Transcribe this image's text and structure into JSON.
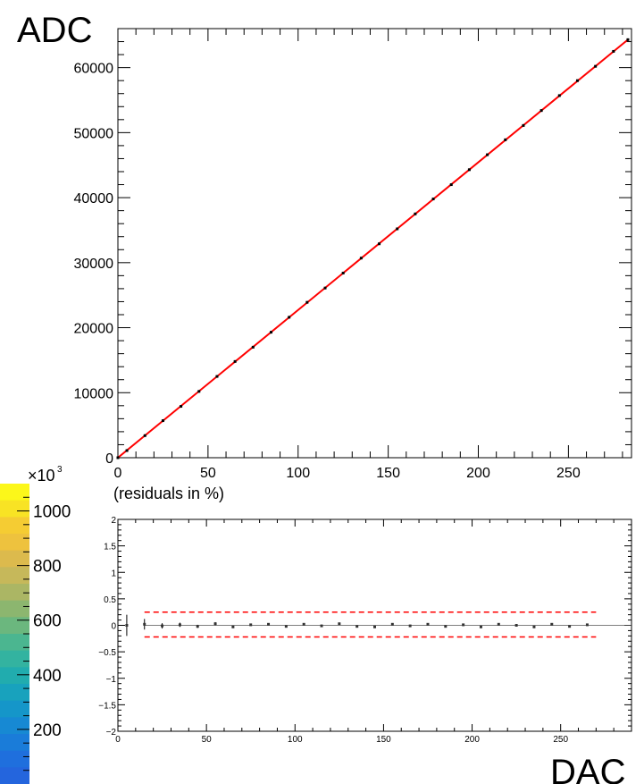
{
  "chart_data": [
    {
      "type": "scatter",
      "title": "",
      "ylabel": "ADC",
      "xlabel": "",
      "xlim": [
        0,
        285
      ],
      "ylim": [
        0,
        66000
      ],
      "x_ticks": [
        "0",
        "50",
        "100",
        "150",
        "200",
        "250"
      ],
      "y_ticks": [
        "0",
        "10000",
        "20000",
        "30000",
        "40000",
        "50000",
        "60000"
      ],
      "series": [
        {
          "color": "#ff0000",
          "fit_line": {
            "x": [
              0,
              283
            ],
            "y": [
              0,
              64300
            ]
          },
          "points": {
            "x": [
              0,
              5,
              15,
              25,
              35,
              45,
              55,
              65,
              75,
              85,
              95,
              105,
              115,
              125,
              135,
              145,
              155,
              165,
              175,
              185,
              195,
              205,
              215,
              225,
              235,
              245,
              255,
              265,
              275,
              283
            ],
            "y": [
              0,
              1100,
              3400,
              5700,
              7900,
              10200,
              12500,
              14800,
              17000,
              19300,
              21600,
              23900,
              26100,
              28400,
              30700,
              32900,
              35200,
              37500,
              39800,
              42000,
              44300,
              46600,
              48900,
              51100,
              53400,
              55700,
              58000,
              60200,
              62500,
              64300
            ]
          }
        }
      ]
    },
    {
      "type": "scatter",
      "title": "(residuals in %)",
      "xlabel": "DAC",
      "ylabel": "",
      "xlim": [
        0,
        290
      ],
      "ylim": [
        -2,
        2
      ],
      "x_ticks": [
        "0",
        "50",
        "100",
        "150",
        "200",
        "250"
      ],
      "y_ticks": [
        "2",
        "1.5",
        "1",
        "0.5",
        "0",
        "−0.5",
        "−1",
        "−1.5",
        "−2"
      ],
      "band": {
        "upper": 0.25,
        "lower": -0.22,
        "x_start": 15,
        "x_end": 270,
        "color": "#ff0000"
      },
      "points": {
        "x": [
          5,
          15,
          25,
          35,
          45,
          55,
          65,
          75,
          85,
          95,
          105,
          115,
          125,
          135,
          145,
          155,
          165,
          175,
          185,
          195,
          205,
          215,
          225,
          235,
          245,
          255,
          265
        ],
        "y": [
          0.0,
          0.02,
          -0.01,
          0.01,
          -0.02,
          0.03,
          -0.03,
          0.01,
          0.02,
          -0.02,
          0.02,
          -0.01,
          0.03,
          -0.02,
          -0.03,
          0.02,
          -0.01,
          0.02,
          -0.02,
          0.01,
          -0.03,
          0.02,
          0.0,
          -0.03,
          0.02,
          -0.02,
          0.01
        ],
        "err": [
          0.2,
          0.1,
          0.05,
          0.04,
          0.03,
          0.03,
          0.02,
          0.02,
          0.02,
          0.02,
          0.02,
          0.02,
          0.02,
          0.02,
          0.02,
          0.02,
          0.02,
          0.02,
          0.02,
          0.02,
          0.02,
          0.02,
          0.02,
          0.02,
          0.02,
          0.02,
          0.02
        ]
      }
    }
  ],
  "colorbar": {
    "multiplier": "×10",
    "exponent": "3",
    "tick_labels": [
      "1000",
      "800",
      "600",
      "400",
      "200"
    ],
    "tick_values": [
      1000,
      800,
      600,
      400,
      200
    ],
    "range": [
      0,
      1100
    ],
    "colors_top_to_bottom": [
      "#fcf71a",
      "#f8e324",
      "#f5cc33",
      "#eec23e",
      "#dcba4d",
      "#c6b85a",
      "#abb664",
      "#8cb66f",
      "#6bb77e",
      "#4bb690",
      "#33b3a0",
      "#21acae",
      "#18a2bd",
      "#1596c9",
      "#1789d3",
      "#1a7cd9",
      "#1f6fdd",
      "#2465dd"
    ]
  }
}
